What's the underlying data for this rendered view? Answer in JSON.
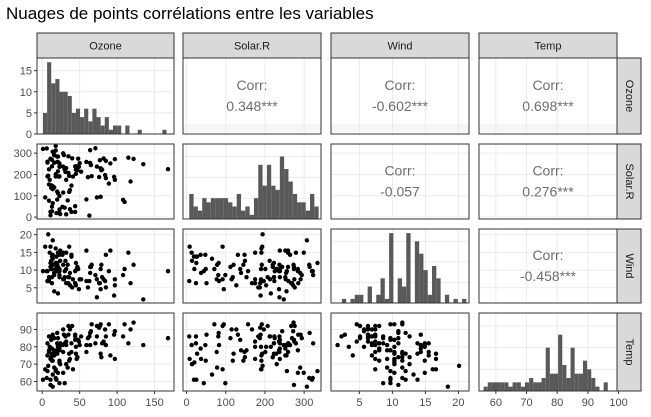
{
  "title": "Nuages de points corrélations entre les variables",
  "colors": {
    "strip_bg": "#d9d9d9",
    "strip_border": "#333333",
    "grid": "#ebebeb",
    "bar": "#595959",
    "point": "#000000",
    "corr_text": "#6e6e6e",
    "axis_text": "#4d4d4d"
  },
  "chart_data": {
    "type": "scatter",
    "variables": [
      "Ozone",
      "Solar.R",
      "Wind",
      "Temp"
    ],
    "column_strips": [
      "Ozone",
      "Solar.R",
      "Wind",
      "Temp"
    ],
    "row_strips": [
      "Ozone",
      "Solar.R",
      "Wind",
      "Temp"
    ],
    "corr_label": "Corr:",
    "correlations": [
      {
        "row": "Ozone",
        "col": "Solar.R",
        "value": "0.348***"
      },
      {
        "row": "Ozone",
        "col": "Wind",
        "value": "-0.602***"
      },
      {
        "row": "Ozone",
        "col": "Temp",
        "value": "0.698***"
      },
      {
        "row": "Solar.R",
        "col": "Wind",
        "value": "-0.057"
      },
      {
        "row": "Solar.R",
        "col": "Temp",
        "value": "0.276***"
      },
      {
        "row": "Wind",
        "col": "Temp",
        "value": "-0.458***"
      }
    ],
    "x_ticks": {
      "Ozone": [
        "0",
        "50",
        "100",
        "150"
      ],
      "Solar.R": [
        "0",
        "100",
        "200",
        "300"
      ],
      "Wind": [
        "5",
        "10",
        "15",
        "20"
      ],
      "Temp": [
        "60",
        "70",
        "80",
        "90",
        "100"
      ]
    },
    "y_ticks": {
      "Ozone": [
        "0",
        "5",
        "10",
        "15"
      ],
      "Solar.R": [
        "0",
        "100",
        "200",
        "300"
      ],
      "Wind": [
        "5",
        "10",
        "15",
        "20"
      ],
      "Temp": [
        "60",
        "70",
        "80",
        "90"
      ]
    },
    "ranges": {
      "Ozone": [
        -7,
        176
      ],
      "Solar.R": [
        -9,
        343
      ],
      "Wind": [
        0.7,
        21.6
      ],
      "Temp": [
        54.5,
        99.5
      ]
    },
    "diag_ylim": [
      0,
      18
    ],
    "histograms": {
      "Ozone": {
        "start": 1,
        "width": 5.5,
        "counts": [
          5,
          17,
          12,
          13,
          10,
          10,
          9,
          5,
          6,
          4,
          6,
          3,
          6,
          4,
          2,
          4,
          1,
          2,
          2,
          0,
          2,
          0,
          0,
          1,
          0,
          0,
          0,
          0,
          0,
          1
        ]
      },
      "Solar.R": {
        "start": 7,
        "width": 11,
        "counts": [
          6,
          3,
          2,
          5,
          4,
          5,
          5,
          5,
          5,
          4,
          3,
          6,
          2,
          3,
          1,
          5,
          13,
          8,
          13,
          8,
          7,
          15,
          12,
          9,
          6,
          4,
          4,
          2,
          6,
          3
        ]
      },
      "Wind": {
        "start": 1.7,
        "width": 0.65,
        "counts": [
          0,
          1,
          0,
          1,
          2,
          2,
          0,
          4,
          0,
          2,
          6,
          1,
          17,
          0,
          6,
          4,
          17,
          0,
          15,
          12,
          8,
          2,
          9,
          6,
          0,
          2,
          0,
          1,
          0,
          1
        ]
      },
      "Temp": {
        "start": 56,
        "width": 1.35,
        "counts": [
          1,
          2,
          2,
          2,
          2,
          2,
          1,
          2,
          2,
          1,
          2,
          3,
          2,
          2,
          3,
          10,
          4,
          4,
          13,
          6,
          3,
          10,
          4,
          4,
          7,
          5,
          3,
          1,
          0,
          2
        ]
      }
    },
    "data": {
      "Ozone": [
        41,
        36,
        12,
        18,
        28,
        23,
        19,
        8,
        7,
        16,
        11,
        14,
        18,
        14,
        34,
        6,
        30,
        11,
        1,
        11,
        4,
        32,
        23,
        45,
        115,
        37,
        29,
        71,
        39,
        23,
        21,
        37,
        20,
        12,
        13,
        135,
        49,
        32,
        64,
        40,
        77,
        97,
        97,
        85,
        10,
        27,
        7,
        48,
        35,
        61,
        79,
        63,
        16,
        80,
        108,
        20,
        52,
        82,
        50,
        64,
        59,
        39,
        9,
        16,
        78,
        35,
        66,
        122,
        89,
        110,
        44,
        28,
        65,
        22,
        59,
        23,
        31,
        44,
        21,
        9,
        45,
        168,
        73,
        76,
        118,
        84,
        85,
        96,
        78,
        73,
        91,
        47,
        32,
        20,
        23,
        21,
        24,
        44,
        21,
        28,
        9,
        13,
        46,
        18,
        13,
        24,
        16,
        13,
        23,
        36,
        7,
        14,
        30,
        14,
        18,
        20
      ],
      "Solar.R": [
        190,
        118,
        149,
        313,
        299,
        99,
        19,
        194,
        256,
        290,
        274,
        65,
        334,
        307,
        78,
        322,
        44,
        8,
        320,
        25,
        92,
        13,
        252,
        223,
        279,
        127,
        291,
        323,
        148,
        191,
        284,
        37,
        120,
        137,
        269,
        248,
        236,
        175,
        314,
        276,
        267,
        272,
        175,
        264,
        175,
        48,
        260,
        274,
        285,
        187,
        220,
        7,
        294,
        223,
        81,
        82,
        213,
        275,
        253,
        254,
        83,
        24,
        77,
        255,
        229,
        207,
        192,
        273,
        157,
        71,
        51,
        115,
        244,
        190,
        259,
        36,
        212,
        238,
        215,
        153,
        203,
        225,
        237,
        188,
        167,
        197,
        183,
        189,
        95,
        92,
        252,
        220,
        230,
        259,
        236,
        259,
        238,
        24,
        112,
        237,
        224,
        27,
        238,
        201,
        238,
        14,
        139,
        49,
        20,
        193,
        191,
        131,
        223,
        145,
        191,
        284
      ],
      "Wind": [
        7.4,
        8,
        12.6,
        11.5,
        14.9,
        8.6,
        13.8,
        20.1,
        9.7,
        9.2,
        10.9,
        13.2,
        12,
        18.4,
        11.5,
        9.7,
        9.7,
        16.6,
        9.7,
        12,
        16.6,
        14.9,
        8,
        12,
        14.9,
        5.7,
        7.4,
        8.6,
        14.3,
        14.9,
        10.3,
        9.2,
        11.5,
        10.3,
        6.3,
        1.7,
        4.6,
        6.3,
        10.9,
        5.1,
        6.3,
        5.7,
        7.4,
        14.3,
        14.9,
        14.3,
        6.9,
        10.3,
        6.3,
        5.1,
        11.5,
        6.9,
        8.6,
        8,
        8.6,
        12,
        7.4,
        7.4,
        7.4,
        9.2,
        6.9,
        13.8,
        7.4,
        4,
        10.3,
        8,
        11.5,
        11.5,
        9.7,
        10.3,
        6.3,
        7.4,
        10.9,
        10.3,
        15.5,
        14.3,
        12.6,
        9.7,
        3.4,
        8,
        5.7,
        9.7,
        2.3,
        6.3,
        6.3,
        6.9,
        5.1,
        2.8,
        4.6,
        7.4,
        15.5,
        10.9,
        10.3,
        10.9,
        9.7,
        14.9,
        15.5,
        6.3,
        10.9,
        11.5,
        6.9,
        13.8,
        10.3,
        10.3,
        8,
        12.6,
        9.2,
        10.3,
        10.3,
        16.6,
        6.9,
        14.3,
        8,
        11.5,
        16.1,
        9.7
      ],
      "Temp": [
        67,
        72,
        74,
        62,
        65,
        59,
        61,
        69,
        66,
        68,
        58,
        64,
        66,
        57,
        68,
        62,
        59,
        73,
        61,
        61,
        67,
        81,
        79,
        76,
        82,
        90,
        87,
        82,
        77,
        72,
        65,
        73,
        76,
        84,
        85,
        81,
        83,
        83,
        88,
        92,
        92,
        89,
        73,
        81,
        80,
        81,
        82,
        84,
        87,
        85,
        74,
        86,
        85,
        82,
        86,
        88,
        86,
        83,
        81,
        81,
        81,
        82,
        77,
        75,
        76,
        92,
        93,
        94,
        93,
        93,
        87,
        90,
        89,
        80,
        77,
        79,
        86,
        84,
        80,
        78,
        80,
        85,
        86,
        91,
        90,
        90,
        86,
        87,
        93,
        92,
        75,
        74,
        70,
        82,
        78,
        81,
        82,
        86,
        85,
        77,
        86,
        76,
        73,
        77,
        79,
        70,
        78,
        72,
        71,
        76,
        75,
        87,
        82,
        72,
        67,
        78
      ]
    }
  }
}
